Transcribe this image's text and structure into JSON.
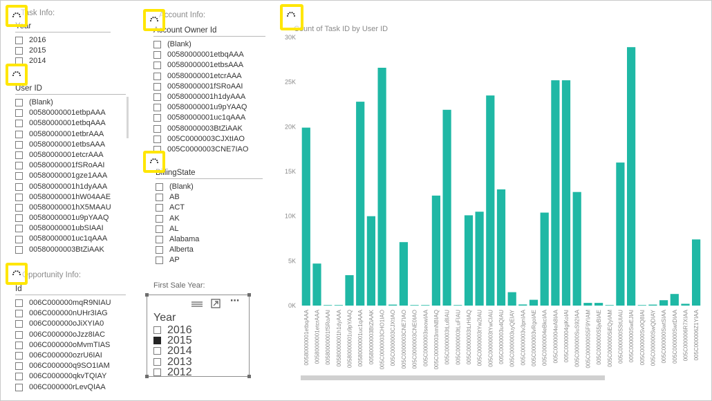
{
  "task_info": {
    "title": "Task Info:",
    "field": "Year",
    "items": [
      "2016",
      "2015",
      "2014"
    ]
  },
  "user_slicer": {
    "field": "User ID",
    "items": [
      "(Blank)",
      "00580000001etbpAAA",
      "00580000001etbqAAA",
      "00580000001etbrAAA",
      "00580000001etbsAAA",
      "00580000001etcrAAA",
      "00580000001fSRoAAI",
      "00580000001gze1AAA",
      "00580000001h1dyAAA",
      "00580000001hW04AAE",
      "00580000001hX5MAAU",
      "00580000001u9pYAAQ",
      "00580000001ubSIAAI",
      "00580000001uc1qAAA",
      "00580000003BtZiAAK"
    ]
  },
  "account_info": {
    "title": "Account Info:",
    "field": "Account Owner Id",
    "items": [
      "(Blank)",
      "00580000001etbqAAA",
      "00580000001etbsAAA",
      "00580000001etcrAAA",
      "00580000001fSRoAAI",
      "00580000001h1dyAAA",
      "00580000001u9pYAAQ",
      "00580000001uc1qAAA",
      "00580000003BtZiAAK",
      "005C0000003CJXtIAO",
      "005C0000003CNE7IAO"
    ]
  },
  "billing_slicer": {
    "field": "BillingState",
    "items": [
      "(Blank)",
      "AB",
      "ACT",
      "AK",
      "AL",
      "Alabama",
      "Alberta",
      "AP"
    ]
  },
  "opportunity_info": {
    "title": "Opportunity Info:",
    "field": "Id",
    "items": [
      "006C000000mqR9NIAU",
      "006C000000nUHr3IAG",
      "006C000000oJiXYIA0",
      "006C000000oJzz8IAC",
      "006C000000oMvmTIAS",
      "006C000000ozrU6IAI",
      "006C000000q9SO1IAM",
      "006C000000qkvTQIAY",
      "006C000000rLevQIAA"
    ]
  },
  "first_sale": {
    "title": "First Sale Year:",
    "field": "Year",
    "items": [
      {
        "label": "2016",
        "checked": false
      },
      {
        "label": "2015",
        "checked": true
      },
      {
        "label": "2014",
        "checked": false
      },
      {
        "label": "2013",
        "checked": false
      },
      {
        "label": "2012",
        "checked": false
      }
    ]
  },
  "icons": {
    "marker": "loading-spinner-icon",
    "focus_mode": "focus-mode-icon",
    "more_options": "more-options-icon",
    "drag_handle": "drag-handle-icon"
  },
  "colors": {
    "bar": "#1fb8a5",
    "marker_border": "#ffe600"
  },
  "chart_data": {
    "type": "bar",
    "title": "Count of Task ID by User ID",
    "ylim": [
      0,
      30000
    ],
    "y_ticks": [
      "0K",
      "5K",
      "10K",
      "15K",
      "20K",
      "25K",
      "30K"
    ],
    "categories": [
      "00580000001etbqAAA",
      "00580000001etcrAAA",
      "00580000001fSRoAAI",
      "00580000001h1dyAAA",
      "00580000001u9pYAAQ",
      "00580000001uc1qAAA",
      "00580000003BtZiAAK",
      "005C0000003CHO1IAO",
      "005C0000003CJXtIAO",
      "005C0000003CNE7IAO",
      "005C0000003CNE0IAO",
      "005C0000003seowIAA",
      "005C0000003nmNBIAQ",
      "005C0000003tLu8IAU",
      "005C0000003tLuFIAU",
      "005C0000003tLrHIAQ",
      "005C0000003tYw2IAU",
      "005C0000003tYwCIAU",
      "005C0000003u4QIAU",
      "005C0000003uyQEIAY",
      "005C0000003v3pnIAA",
      "005C0000003vRgoIAE",
      "005C0000004eBkcIAA",
      "005C0000004eA8IAA",
      "005C0000004giKoIAI",
      "005C000000SuS92IAA",
      "005C000000S5F9YIAM",
      "005C000000S5jvBIAE",
      "005C000000SiEQyIAM",
      "005C000000SStUIAU",
      "005C000000SwEJIAI",
      "005C000000Sv0Q8IAI",
      "005C000000SwQDIAY",
      "005C000000SwtSIAA",
      "005C000000SwtDIAA",
      "005C000006R7XIAA",
      "005C000006Z1YIAA"
    ],
    "values": [
      19900,
      4700,
      60,
      60,
      3400,
      22800,
      10000,
      26600,
      110,
      7100,
      60,
      60,
      12300,
      21900,
      60,
      10100,
      10500,
      23500,
      13000,
      1500,
      120,
      650,
      10400,
      25200,
      25200,
      12700,
      300,
      300,
      60,
      16000,
      28900,
      60,
      110,
      600,
      1300,
      200,
      7400
    ]
  }
}
